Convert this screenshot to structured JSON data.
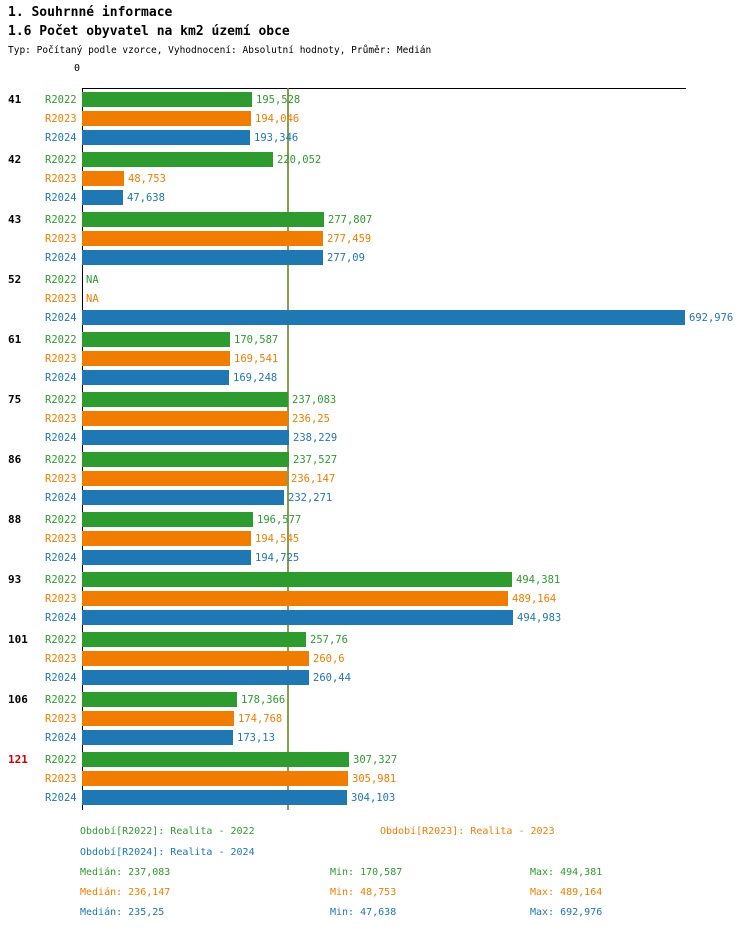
{
  "header": {
    "title": "1. Souhrnné informace",
    "subtitle": "1.6 Počet obyvatel na km2 území obce",
    "meta": "Typ: Počítaný podle vzorce, Vyhodnocení: Absolutní hodnoty, Průměr: Medián"
  },
  "chart_data": {
    "type": "bar",
    "orientation": "horizontal",
    "title": "1.6 Počet obyvatel na km2 území obce",
    "categories": [
      "41",
      "42",
      "43",
      "52",
      "61",
      "75",
      "86",
      "88",
      "93",
      "101",
      "106",
      "121"
    ],
    "highlighted_category": "121",
    "highlight_color": "#cc0000",
    "category_label_color": "#000000",
    "axis_zero_label": "0",
    "xlim": [
      0,
      692.976
    ],
    "grid": false,
    "legend_position": "bottom",
    "median_line": {
      "value": 235.25,
      "color": "#6f8f2f"
    },
    "series": [
      {
        "name": "R2022",
        "color": "#2e9b2e",
        "values": [
          195.528,
          220.052,
          277.807,
          null,
          170.587,
          237.083,
          237.527,
          196.577,
          494.381,
          257.76,
          178.366,
          307.327
        ],
        "labels": [
          "195,528",
          "220,052",
          "277,807",
          "NA",
          "170,587",
          "237,083",
          "237,527",
          "196,577",
          "494,381",
          "257,76",
          "178,366",
          "307,327"
        ]
      },
      {
        "name": "R2023",
        "color": "#f07d00",
        "values": [
          194.046,
          48.753,
          277.459,
          null,
          169.541,
          236.25,
          236.147,
          194.545,
          489.164,
          260.6,
          174.768,
          305.981
        ],
        "labels": [
          "194,046",
          "48,753",
          "277,459",
          "NA",
          "169,541",
          "236,25",
          "236,147",
          "194,545",
          "489,164",
          "260,6",
          "174,768",
          "305,981"
        ]
      },
      {
        "name": "R2024",
        "color": "#1f77b4",
        "values": [
          193.346,
          47.638,
          277.09,
          692.976,
          169.248,
          238.229,
          232.271,
          194.725,
          494.983,
          260.44,
          173.13,
          304.103
        ],
        "labels": [
          "193,346",
          "47,638",
          "277,09",
          "692,976",
          "169,248",
          "238,229",
          "232,271",
          "194,725",
          "494,983",
          "260,44",
          "173,13",
          "304,103"
        ]
      }
    ]
  },
  "legend": {
    "items": [
      {
        "label": "Období[R2022]: Realita - 2022"
      },
      {
        "label": "Období[R2023]: Realita - 2023"
      },
      {
        "label": "Období[R2024]: Realita - 2024"
      }
    ]
  },
  "stats": {
    "rows": [
      {
        "median": "Medián: 237,083",
        "min": "Min: 170,587",
        "max": "Max: 494,381"
      },
      {
        "median": "Medián: 236,147",
        "min": "Min: 48,753",
        "max": "Max: 489,164"
      },
      {
        "median": "Medián: 235,25",
        "min": "Min: 47,638",
        "max": "Max: 692,976"
      }
    ]
  }
}
